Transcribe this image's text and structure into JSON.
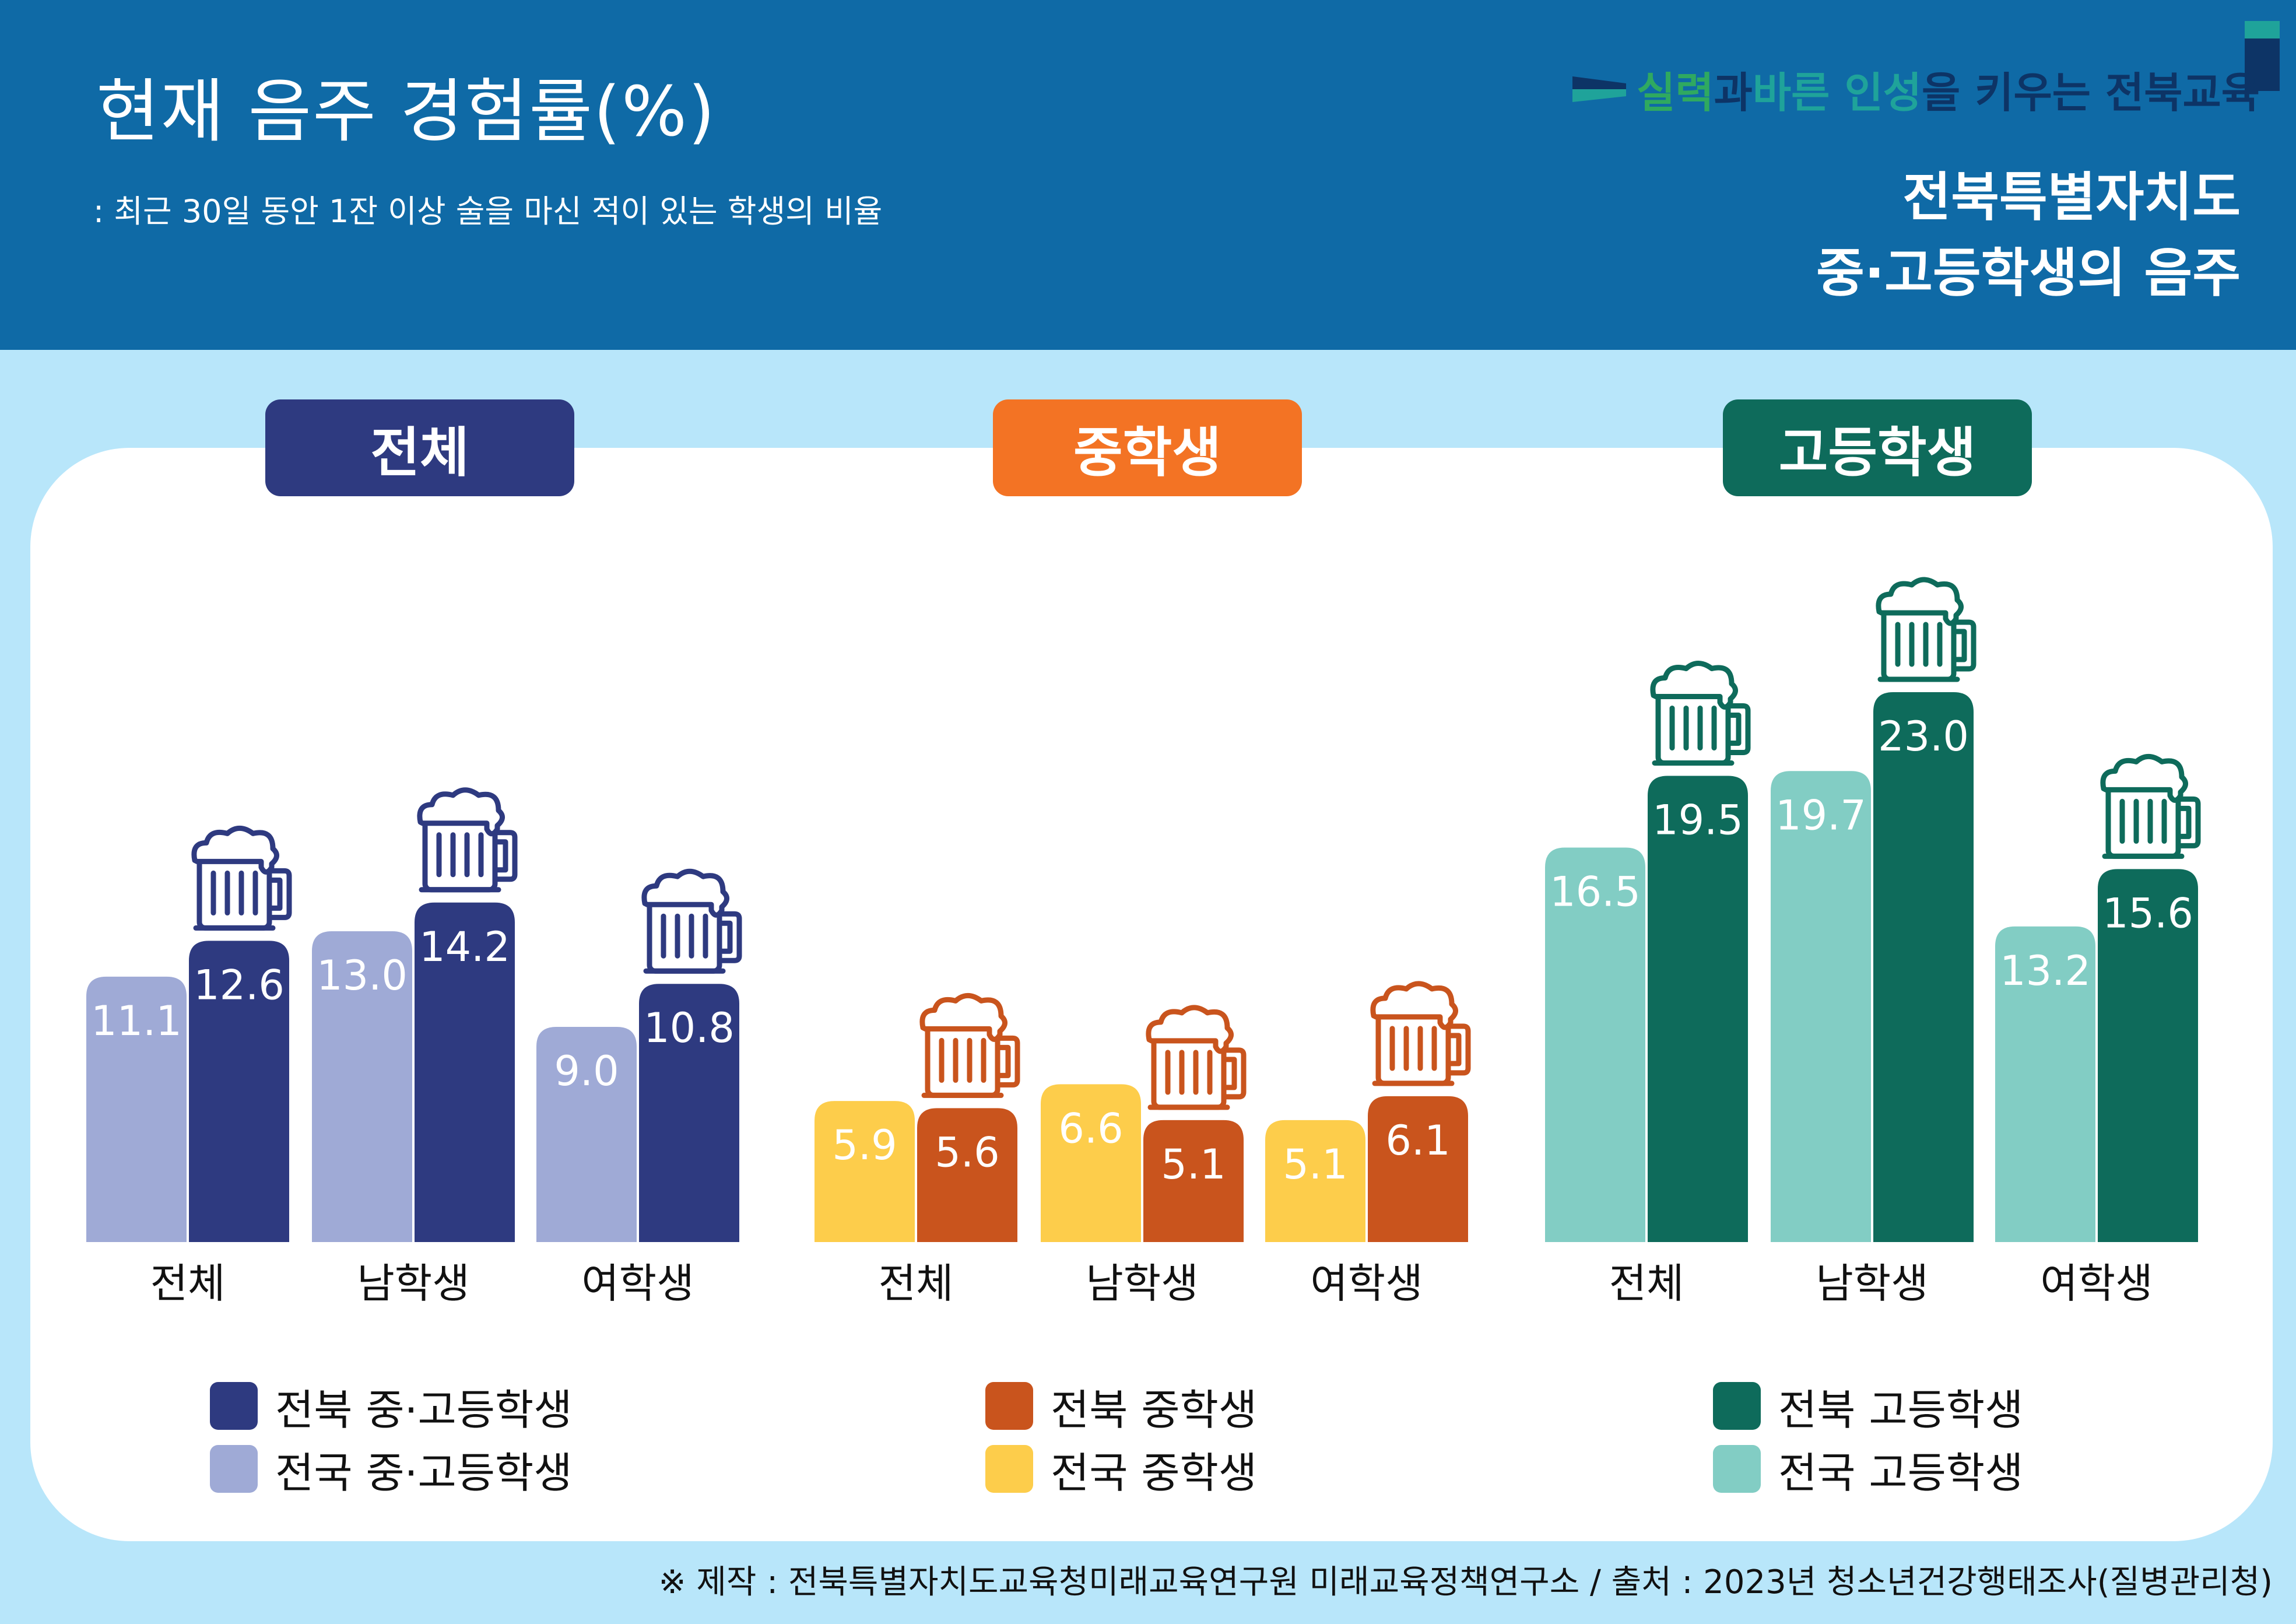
{
  "header": {
    "title": "현재 음주 경험률(%)",
    "subtitle": ": 최근 30일 동안 1잔 이상 술을 마신 적이 있는 학생의 비율",
    "brand": {
      "p1": "실력",
      "p2": "과 ",
      "p3": "바른 인성",
      "p4": "을 키우는 전북교육"
    },
    "poster_title_line1": "전북특별자치도",
    "poster_title_line2": "중·고등학생의 음주"
  },
  "colors": {
    "header_bg": "#0f6aa6",
    "page_bg": "#b8e6fa",
    "total_dark": "#2e3a80",
    "total_light": "#9faad6",
    "middle_dark": "#c9541d",
    "middle_light": "#fdcd4b",
    "middle_tag": "#f37324",
    "high_dark": "#0e6b5b",
    "high_light": "#82cdc4"
  },
  "chart_data": [
    {
      "type": "bar",
      "title": "전체",
      "categories": [
        "전체",
        "남학생",
        "여학생"
      ],
      "series": [
        {
          "name": "전국 중·고등학생",
          "values": [
            11.1,
            13.0,
            9.0
          ]
        },
        {
          "name": "전북 중·고등학생",
          "values": [
            12.6,
            14.2,
            10.8
          ]
        }
      ],
      "ylim": [
        0,
        25
      ],
      "grid": false,
      "legend": "bottom"
    },
    {
      "type": "bar",
      "title": "중학생",
      "categories": [
        "전체",
        "남학생",
        "여학생"
      ],
      "series": [
        {
          "name": "전국 중학생",
          "values": [
            5.9,
            6.6,
            5.1
          ]
        },
        {
          "name": "전북 중학생",
          "values": [
            5.6,
            5.1,
            6.1
          ]
        }
      ],
      "ylim": [
        0,
        25
      ],
      "grid": false,
      "legend": "bottom"
    },
    {
      "type": "bar",
      "title": "고등학생",
      "categories": [
        "전체",
        "남학생",
        "여학생"
      ],
      "series": [
        {
          "name": "전국 고등학생",
          "values": [
            16.5,
            19.7,
            13.2
          ]
        },
        {
          "name": "전북 고등학생",
          "values": [
            19.5,
            23.0,
            15.6
          ]
        }
      ],
      "ylim": [
        0,
        25
      ],
      "grid": false,
      "legend": "bottom"
    }
  ],
  "legends": [
    [
      "전북 중·고등학생",
      "전국 중·고등학생"
    ],
    [
      "전북 중학생",
      "전국 중학생"
    ],
    [
      "전북 고등학생",
      "전국 고등학생"
    ]
  ],
  "footer": "※ 제작 : 전북특별자치도교육청미래교육연구원 미래교육정책연구소 / 출처 : 2023년 청소년건강행태조사(질병관리청)"
}
